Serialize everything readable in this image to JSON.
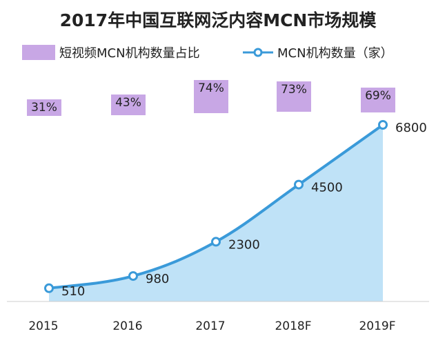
{
  "chart_data": {
    "type": "line+bar",
    "title": "2017年中国互联网泛内容MCN市场规模",
    "categories": [
      "2015",
      "2016",
      "2017",
      "2018F",
      "2019F"
    ],
    "series": [
      {
        "name": "短视频MCN机构数量占比",
        "type": "bar",
        "values": [
          31,
          43,
          74,
          73,
          69
        ],
        "labels": [
          "31%",
          "43%",
          "74%",
          "73%",
          "69%"
        ],
        "color": "#c8a7e5"
      },
      {
        "name": "MCN机构数量（家）",
        "type": "area-line",
        "values": [
          510,
          980,
          2300,
          4500,
          6800
        ],
        "labels": [
          "510",
          "980",
          "2300",
          "4500",
          "6800"
        ],
        "color": "#3a9ad9",
        "fill": "#bfe2f7"
      }
    ],
    "ylim": [
      0,
      6800
    ],
    "xlabel": "",
    "ylabel": ""
  },
  "legend": {
    "bar_label": "短视频MCN机构数量占比",
    "line_label": "MCN机构数量（家）"
  }
}
